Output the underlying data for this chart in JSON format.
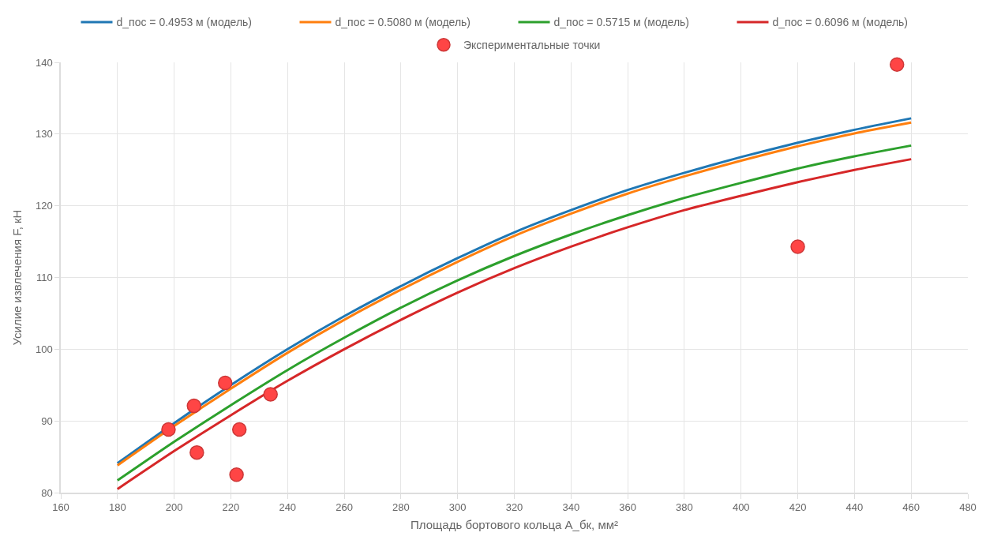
{
  "chart_data": {
    "type": "line",
    "xlabel": "Площадь бортового кольца A_бк, мм²",
    "ylabel": "Усилие извлечения F, кН",
    "x": [
      180,
      200,
      220,
      240,
      260,
      280,
      300,
      320,
      340,
      360,
      380,
      400,
      420,
      440,
      460
    ],
    "series": [
      {
        "name": "d_пос = 0.4953 м (модель)",
        "color": "#1f77b4",
        "values": [
          84.1,
          89.7,
          95.0,
          100.0,
          104.6,
          108.8,
          112.7,
          116.3,
          119.4,
          122.2,
          124.6,
          126.8,
          128.8,
          130.6,
          132.2
        ]
      },
      {
        "name": "d_пос = 0.5080 м (модель)",
        "color": "#ff7f0e",
        "values": [
          83.8,
          89.3,
          94.5,
          99.5,
          104.1,
          108.3,
          112.2,
          115.8,
          118.9,
          121.7,
          124.1,
          126.3,
          128.3,
          130.1,
          131.6
        ]
      },
      {
        "name": "d_пос = 0.5715 м (модель)",
        "color": "#2ca02c",
        "values": [
          81.7,
          87.1,
          92.2,
          97.1,
          101.6,
          105.8,
          109.6,
          113.0,
          116.0,
          118.7,
          121.1,
          123.2,
          125.2,
          126.9,
          128.4
        ]
      },
      {
        "name": "d_пос = 0.6096 м (модель)",
        "color": "#d62728",
        "values": [
          80.5,
          85.8,
          90.8,
          95.6,
          100.0,
          104.1,
          107.9,
          111.3,
          114.3,
          117.0,
          119.4,
          121.4,
          123.3,
          125.0,
          126.5
        ]
      },
      {
        "name": "Экспериментальные точки",
        "type": "scatter",
        "marker": "circle",
        "color": "#ff4545",
        "x": [
          198,
          207,
          208,
          218,
          222,
          223,
          234,
          420,
          455
        ],
        "values": [
          88.8,
          92.1,
          85.6,
          95.3,
          82.5,
          88.8,
          93.7,
          114.3,
          139.7
        ]
      }
    ],
    "xlim": [
      160,
      480
    ],
    "xticks": [
      160,
      180,
      200,
      220,
      240,
      260,
      280,
      300,
      320,
      340,
      360,
      380,
      400,
      420,
      440,
      460,
      480
    ],
    "ylim": [
      80,
      140
    ],
    "yticks": [
      80,
      90,
      100,
      110,
      120,
      130,
      140
    ],
    "grid": true,
    "legend": "top",
    "line_style": "solid",
    "marker": "none"
  }
}
